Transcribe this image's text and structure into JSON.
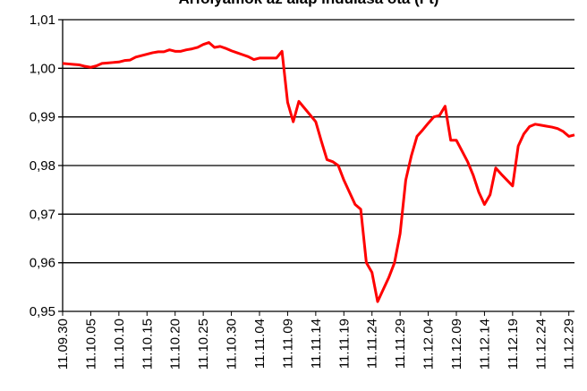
{
  "chart_data": {
    "type": "line",
    "title": "Árfolyamok az alap indulása óta (Ft)",
    "categories": [
      "11.09.30",
      null,
      null,
      null,
      null,
      "11.10.05",
      null,
      null,
      null,
      null,
      "11.10.10",
      null,
      null,
      null,
      null,
      "11.10.15",
      null,
      null,
      null,
      null,
      "11.10.20",
      null,
      null,
      null,
      null,
      "11.10.25",
      null,
      null,
      null,
      null,
      "11.10.30",
      null,
      null,
      null,
      null,
      "11.11.04",
      null,
      null,
      null,
      null,
      "11.11.09",
      null,
      null,
      null,
      null,
      "11.11.14",
      null,
      null,
      null,
      null,
      "11.11.19",
      null,
      null,
      null,
      null,
      "11.11.24",
      null,
      null,
      null,
      null,
      "11.11.29",
      null,
      null,
      null,
      null,
      "11.12.04",
      null,
      null,
      null,
      null,
      "11.12.09",
      null,
      null,
      null,
      null,
      "11.12.14",
      null,
      null,
      null,
      null,
      "11.12.19",
      null,
      null,
      null,
      null,
      "11.12.24",
      null,
      null,
      null,
      null,
      "11.12.29",
      null
    ],
    "values": [
      1.001,
      1.0009,
      1.0008,
      1.0007,
      1.0004,
      1.0002,
      1.0005,
      1.001,
      1.0011,
      1.0012,
      1.0013,
      1.0016,
      1.0017,
      1.0023,
      1.0026,
      1.0029,
      1.0032,
      1.0034,
      1.0034,
      1.0038,
      1.0035,
      1.0035,
      1.0038,
      1.004,
      1.0043,
      1.0049,
      1.0053,
      1.0043,
      1.0045,
      1.0041,
      1.0036,
      1.0032,
      1.0028,
      1.0024,
      1.0018,
      1.0021,
      1.0021,
      1.0021,
      1.0021,
      1.0035,
      0.993,
      0.989,
      0.9932,
      0.9918,
      0.9904,
      0.989,
      0.985,
      0.9812,
      0.9808,
      0.98,
      0.977,
      0.9745,
      0.972,
      0.971,
      0.96,
      0.958,
      0.952,
      0.9545,
      0.957,
      0.96,
      0.966,
      0.977,
      0.982,
      0.986,
      0.9873,
      0.9887,
      0.99,
      0.9903,
      0.9922,
      0.9852,
      0.9852,
      0.983,
      0.9808,
      0.978,
      0.9745,
      0.972,
      0.974,
      0.9795,
      0.9782,
      0.977,
      0.9758,
      0.984,
      0.9865,
      0.988,
      0.9885,
      0.9883,
      0.9881,
      0.9879,
      0.9876,
      0.987,
      0.986,
      0.9863
    ],
    "color": "#ff0000",
    "ylim": [
      0.95,
      1.01
    ],
    "yticks": [
      {
        "value": 0.95,
        "label": "0,95"
      },
      {
        "value": 0.96,
        "label": "0,96"
      },
      {
        "value": 0.97,
        "label": "0,97"
      },
      {
        "value": 0.98,
        "label": "0,98"
      },
      {
        "value": 0.99,
        "label": "0,99"
      },
      {
        "value": 1.0,
        "label": "1,00"
      },
      {
        "value": 1.01,
        "label": "1,01"
      }
    ],
    "grid": true
  }
}
